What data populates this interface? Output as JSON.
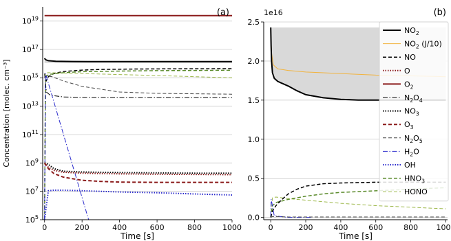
{
  "chart_data": [
    {
      "type": "line",
      "panel_label": "(a)",
      "xlabel": "Time [s]",
      "ylabel": "Concentration [molec. cm⁻³]",
      "xlim": [
        -10,
        1000
      ],
      "ylim": [
        100000,
        1e+20
      ],
      "yscale": "log",
      "grid": "horizontal",
      "shaded_band": {
        "y_low": 1.1e+16,
        "y_high": 1.55e+16,
        "color": "#d9d9d9"
      },
      "xticks": [
        0,
        200,
        400,
        600,
        800,
        1000
      ],
      "xtick_labels": [
        "0",
        "200",
        "400",
        "600",
        "800",
        "1000"
      ],
      "yticks": [
        {
          "exp": 5,
          "label": "10",
          "sup": "5"
        },
        {
          "exp": 7,
          "label": "10",
          "sup": "7"
        },
        {
          "exp": 9,
          "label": "10",
          "sup": "9"
        },
        {
          "exp": 11,
          "label": "10",
          "sup": "11"
        },
        {
          "exp": 13,
          "label": "10",
          "sup": "13"
        },
        {
          "exp": 15,
          "label": "10",
          "sup": "15"
        },
        {
          "exp": 17,
          "label": "10",
          "sup": "17"
        },
        {
          "exp": 19,
          "label": "10",
          "sup": "19"
        }
      ],
      "series": [
        {
          "key": "O2",
          "color": "#8b1a1a",
          "style": "solid",
          "width": 2,
          "x": [
            0,
            1000
          ],
          "y": [
            2.4e+19,
            2.4e+19
          ]
        },
        {
          "key": "NO2",
          "color": "#000000",
          "style": "solid",
          "width": 2,
          "x": [
            0,
            5,
            20,
            60,
            150,
            300,
            600,
            1000
          ],
          "y": [
            2.4e+16,
            1.9e+16,
            1.6e+16,
            1.45e+16,
            1.4e+16,
            1.38e+16,
            1.37e+16,
            1.37e+16
          ]
        },
        {
          "key": "NO",
          "color": "#000000",
          "style": "dashed",
          "width": 1.5,
          "x": [
            0,
            5,
            20,
            50,
            100,
            200,
            300,
            500,
            700,
            1000
          ],
          "y": [
            100000.0,
            500000000000000.0,
            1200000000000000.0,
            2000000000000000.0,
            2800000000000000.0,
            3500000000000000.0,
            3900000000000000.0,
            4200000000000000.0,
            4300000000000000.0,
            4400000000000000.0
          ]
        },
        {
          "key": "HNO3",
          "color": "#5a8a2a",
          "style": "dashed",
          "width": 1.5,
          "x": [
            0,
            5,
            10,
            30,
            100,
            200,
            400,
            600,
            800,
            1000
          ],
          "y": [
            100000.0,
            800000000000000.0,
            1400000000000000.0,
            1800000000000000.0,
            2300000000000000.0,
            2700000000000000.0,
            3000000000000000.0,
            3200000000000000.0,
            3300000000000000.0,
            3400000000000000.0
          ]
        },
        {
          "key": "HONO",
          "color": "#9db84a",
          "style": "dashed",
          "width": 1,
          "x": [
            0,
            5,
            20,
            100,
            200,
            400,
            600,
            800,
            1000
          ],
          "y": [
            100000.0,
            2200000000000000.0,
            2300000000000000.0,
            2200000000000000.0,
            2000000000000000.0,
            1700000000000000.0,
            1450000000000000.0,
            1200000000000000.0,
            1000000000000000.0
          ]
        },
        {
          "key": "N2O5",
          "color": "#444444",
          "style": "dashed",
          "width": 1,
          "x": [
            0,
            10,
            40,
            100,
            200,
            400,
            600,
            1000
          ],
          "y": [
            1000000000000000.0,
            1400000000000000.0,
            1200000000000000.0,
            600000000000000.0,
            250000000000000.0,
            100000000000000.0,
            80000000000000.0,
            70000000000000.0
          ]
        },
        {
          "key": "N2O4",
          "color": "#000000",
          "style": "dashdot",
          "width": 1,
          "x": [
            0,
            10,
            30,
            100,
            200,
            400,
            600,
            1000
          ],
          "y": [
            2000000000000000.0,
            100000000000000.0,
            60000000000000.0,
            45000000000000.0,
            42000000000000.0,
            40000000000000.0,
            40000000000000.0,
            40000000000000.0
          ]
        },
        {
          "key": "H2O",
          "color": "#2a2acc",
          "style": "dashdot",
          "width": 1,
          "x": [
            0,
            5,
            235
          ],
          "y": [
            100000.0,
            2000000000000000.0,
            100000.0
          ]
        },
        {
          "key": "NO3",
          "color": "#000000",
          "style": "dotted",
          "width": 2,
          "x": [
            0,
            20,
            50,
            100,
            200,
            400,
            600,
            800,
            1000
          ],
          "y": [
            1000000000.0,
            800000000.0,
            400000000.0,
            260000000.0,
            230000000.0,
            210000000.0,
            200000000.0,
            190000000.0,
            190000000.0
          ]
        },
        {
          "key": "O",
          "color": "#8b1a1a",
          "style": "dotted",
          "width": 2,
          "x": [
            0,
            20,
            50,
            100,
            200,
            400,
            600,
            800,
            1000
          ],
          "y": [
            1000000000.0,
            500000000.0,
            300000000.0,
            220000000.0,
            190000000.0,
            170000000.0,
            160000000.0,
            155000000.0,
            150000000.0
          ]
        },
        {
          "key": "O3",
          "color": "#8b1a1a",
          "style": "dashed",
          "width": 2,
          "x": [
            0,
            20,
            50,
            100,
            200,
            300,
            400,
            600,
            800,
            1000
          ],
          "y": [
            1000000000.0,
            400000000.0,
            180000000.0,
            100000000.0,
            60000000.0,
            50000000.0,
            45000000.0,
            43000000.0,
            43000000.0,
            43000000.0
          ]
        },
        {
          "key": "OH",
          "color": "#2a2acc",
          "style": "dotted",
          "width": 2,
          "x": [
            0,
            20,
            50,
            100,
            200,
            400,
            600,
            800,
            1000
          ],
          "y": [
            100000.0,
            11000000.0,
            12000000.0,
            12000000.0,
            11000000.0,
            9000000.0,
            8000000.0,
            6500000.0,
            5500000.0
          ]
        }
      ]
    },
    {
      "type": "line",
      "panel_label": "(b)",
      "xlabel": "Time [s]",
      "ylabel": "",
      "offset_text": "1e16",
      "xlim": [
        -40,
        1010
      ],
      "ylim": [
        -0.03,
        2.5
      ],
      "yscale": "linear",
      "grid": "horizontal",
      "shaded_band": {
        "x_start": 0,
        "x_end": 1000,
        "y_top": 2.43,
        "y_bottom_series": "NO2",
        "color": "#d9d9d9"
      },
      "xticks": [
        0,
        200,
        400,
        600,
        800,
        1000
      ],
      "xtick_labels": [
        "0",
        "200",
        "400",
        "600",
        "800",
        "1000"
      ],
      "yticks": [
        0,
        0.5,
        1.0,
        1.5,
        2.0,
        2.5
      ],
      "ytick_labels": [
        "0.0",
        "0.5",
        "1.0",
        "1.5",
        "2.0",
        "2.5"
      ],
      "legend_position": "right",
      "legend": [
        {
          "key": "NO2",
          "label": "NO",
          "sub": "2",
          "suffix": "",
          "color": "#000000",
          "style": "solid",
          "width": 2
        },
        {
          "key": "NO2J",
          "label": "NO",
          "sub": "2",
          "suffix": " (J/10)",
          "color": "#f2b33d",
          "style": "solid",
          "width": 1
        },
        {
          "key": "NO",
          "label": "NO",
          "sub": "",
          "suffix": "",
          "color": "#000000",
          "style": "dashed",
          "width": 1.5
        },
        {
          "key": "O",
          "label": "O",
          "sub": "",
          "suffix": "",
          "color": "#8b1a1a",
          "style": "dotted",
          "width": 2
        },
        {
          "key": "O2",
          "label": "O",
          "sub": "2",
          "suffix": "",
          "color": "#8b1a1a",
          "style": "solid",
          "width": 2
        },
        {
          "key": "N2O4",
          "label": "N",
          "sub": "2",
          "label2": "O",
          "sub2": "4",
          "suffix": "",
          "color": "#000000",
          "style": "dashdot",
          "width": 1
        },
        {
          "key": "NO3",
          "label": "NO",
          "sub": "3",
          "suffix": "",
          "color": "#000000",
          "style": "dotted",
          "width": 2
        },
        {
          "key": "O3",
          "label": "O",
          "sub": "3",
          "suffix": "",
          "color": "#8b1a1a",
          "style": "dashed",
          "width": 2
        },
        {
          "key": "N2O5",
          "label": "N",
          "sub": "2",
          "label2": "O",
          "sub2": "5",
          "suffix": "",
          "color": "#444444",
          "style": "dashed",
          "width": 1
        },
        {
          "key": "H2O",
          "label": "H",
          "sub": "2",
          "label2": "O",
          "sub2": "",
          "suffix": "",
          "color": "#2a2acc",
          "style": "dashdot",
          "width": 1
        },
        {
          "key": "OH",
          "label": "OH",
          "sub": "",
          "suffix": "",
          "color": "#2a2acc",
          "style": "dotted",
          "width": 2
        },
        {
          "key": "HNO3",
          "label": "HNO",
          "sub": "3",
          "suffix": "",
          "color": "#5a8a2a",
          "style": "dashed",
          "width": 1.5
        },
        {
          "key": "HONO",
          "label": "HONO",
          "sub": "",
          "suffix": "",
          "color": "#9db84a",
          "style": "dashed",
          "width": 1
        }
      ],
      "series": [
        {
          "key": "NO2J",
          "color": "#f2b33d",
          "style": "solid",
          "width": 1,
          "x": [
            0,
            5,
            15,
            40,
            100,
            200,
            400,
            600,
            800,
            1000
          ],
          "y": [
            2.43,
            2.1,
            1.95,
            1.9,
            1.88,
            1.86,
            1.84,
            1.82,
            1.81,
            1.8
          ]
        },
        {
          "key": "HONO",
          "color": "#9db84a",
          "style": "dashed",
          "width": 1,
          "x": [
            0,
            10,
            30,
            100,
            200,
            400,
            600,
            800,
            1000
          ],
          "y": [
            0,
            0.25,
            0.26,
            0.24,
            0.22,
            0.18,
            0.15,
            0.13,
            0.11
          ]
        },
        {
          "key": "HNO3",
          "color": "#5a8a2a",
          "style": "dashed",
          "width": 1.5,
          "x": [
            0,
            10,
            30,
            100,
            200,
            300,
            400,
            600,
            800,
            1000
          ],
          "y": [
            0,
            0.15,
            0.19,
            0.23,
            0.27,
            0.3,
            0.32,
            0.34,
            0.36,
            0.38
          ]
        },
        {
          "key": "NO",
          "color": "#000000",
          "style": "dashed",
          "width": 1.5,
          "x": [
            0,
            10,
            30,
            60,
            100,
            150,
            200,
            300,
            400,
            600,
            800,
            1000
          ],
          "y": [
            0,
            0.08,
            0.15,
            0.22,
            0.3,
            0.36,
            0.4,
            0.43,
            0.44,
            0.45,
            0.45,
            0.45
          ]
        },
        {
          "key": "H2O",
          "color": "#2a2acc",
          "style": "dashdot",
          "width": 1,
          "x": [
            0,
            3,
            20,
            100,
            200,
            235
          ],
          "y": [
            0.02,
            0.23,
            0.02,
            0.0,
            0.0,
            0.0
          ]
        },
        {
          "key": "N2O5",
          "color": "#444444",
          "style": "dashed",
          "width": 1,
          "x": [
            0,
            10,
            40,
            100,
            1000
          ],
          "y": [
            0.0,
            0.01,
            0.01,
            0.005,
            0.005
          ]
        },
        {
          "key": "NO2",
          "color": "#000000",
          "style": "solid",
          "width": 2,
          "x": [
            0,
            2,
            5,
            10,
            20,
            40,
            60,
            100,
            150,
            200,
            300,
            400,
            500,
            600,
            800,
            1000
          ],
          "y": [
            2.43,
            2.2,
            2.0,
            1.85,
            1.78,
            1.74,
            1.72,
            1.68,
            1.62,
            1.57,
            1.53,
            1.51,
            1.5,
            1.5,
            1.5,
            1.5
          ]
        }
      ]
    }
  ]
}
